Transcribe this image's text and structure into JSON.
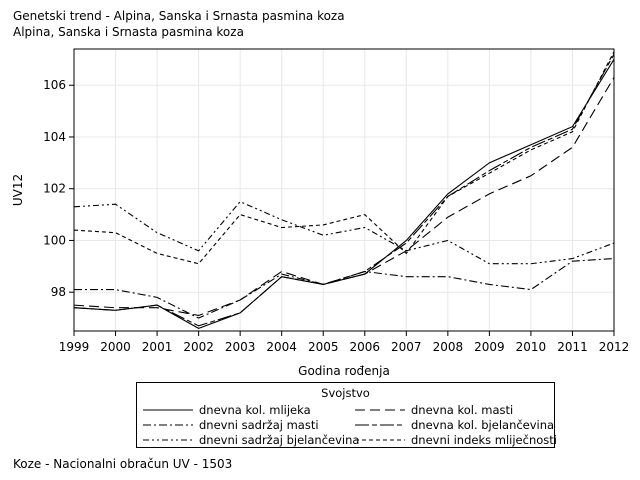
{
  "header": {
    "line1": "Genetski trend - Alpina, Sanska i Srnasta pasmina koza",
    "line2": "Alpina, Sanska i Srnasta pasmina koza"
  },
  "footnote": "Koze - Nacionalni obračun UV - 1503",
  "chart_data": {
    "type": "line",
    "xlabel": "Godina rođenja",
    "ylabel": "UV12",
    "x": [
      1999,
      2000,
      2001,
      2002,
      2003,
      2004,
      2005,
      2006,
      2007,
      2008,
      2009,
      2010,
      2011,
      2012
    ],
    "xlim": [
      1999,
      2012
    ],
    "ylim": [
      96.5,
      107.4
    ],
    "yticks": [
      98,
      100,
      102,
      104,
      106
    ],
    "grid": true,
    "legend_title": "Svojstvo",
    "legend_position": "bottom",
    "series": [
      {
        "name": "dnevna kol. mlijeka",
        "dash": "solid",
        "values": [
          97.4,
          97.3,
          97.5,
          96.6,
          97.2,
          98.6,
          98.3,
          98.7,
          100.0,
          101.8,
          103.0,
          103.7,
          104.4,
          107.0
        ]
      },
      {
        "name": "dnevna kol. masti",
        "dash": "longdash",
        "values": [
          97.5,
          97.4,
          97.4,
          97.1,
          97.7,
          98.8,
          98.3,
          98.7,
          99.6,
          100.9,
          101.8,
          102.5,
          103.6,
          106.3
        ]
      },
      {
        "name": "dnevni sadržaj masti",
        "dash": "dashdot",
        "values": [
          98.1,
          98.1,
          97.8,
          97.0,
          97.7,
          98.7,
          98.3,
          98.8,
          98.6,
          98.6,
          98.3,
          98.1,
          99.2,
          99.3
        ]
      },
      {
        "name": "dnevna kol. bjelančevina",
        "dash": "longshort",
        "values": [
          97.4,
          97.3,
          97.5,
          96.7,
          97.2,
          98.6,
          98.3,
          98.8,
          99.9,
          101.7,
          102.7,
          103.6,
          104.3,
          107.2
        ]
      },
      {
        "name": "dnevni sadržaj bjelančevina",
        "dash": "dashdotlong",
        "values": [
          101.3,
          101.4,
          100.3,
          99.6,
          101.5,
          100.8,
          100.2,
          100.5,
          99.6,
          100.0,
          99.1,
          99.1,
          99.3,
          99.9
        ]
      },
      {
        "name": "dnevni indeks mliječnosti",
        "dash": "shortdash",
        "values": [
          100.4,
          100.3,
          99.5,
          99.1,
          101.0,
          100.5,
          100.6,
          101.0,
          99.5,
          101.7,
          102.6,
          103.5,
          104.2,
          107.3
        ]
      }
    ]
  }
}
